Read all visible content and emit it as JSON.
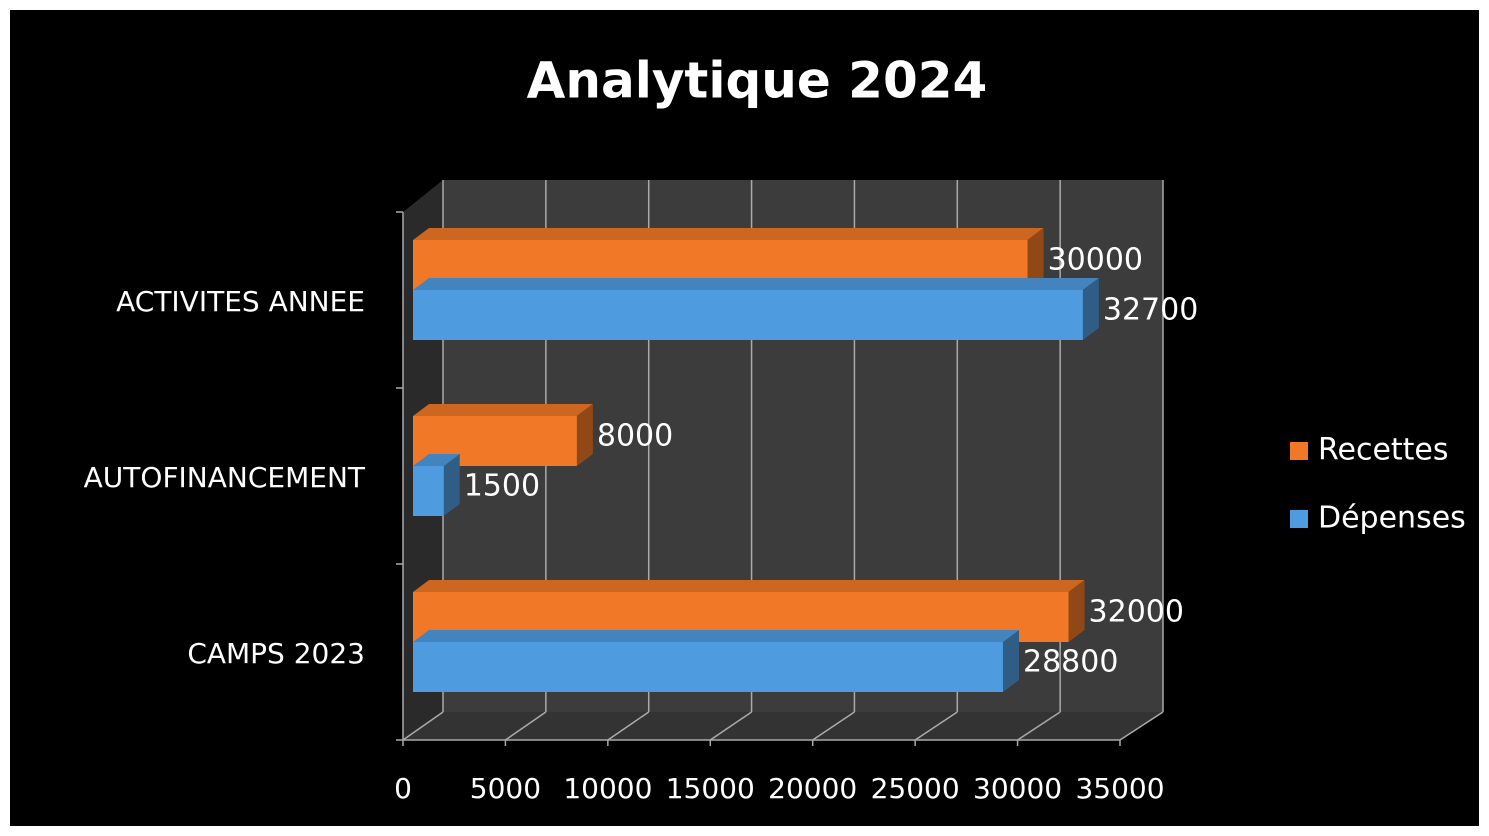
{
  "chart_data": {
    "type": "bar",
    "orientation": "horizontal",
    "title": "Analytique 2024",
    "categories": [
      "ACTIVITES ANNEE",
      "AUTOFINANCEMENT",
      "CAMPS 2023"
    ],
    "series": [
      {
        "name": "Recettes",
        "color": "#f07826",
        "values": [
          30000,
          8000,
          32000
        ]
      },
      {
        "name": "Dépenses",
        "color": "#4f9be0",
        "values": [
          32700,
          1500,
          28800
        ]
      }
    ],
    "xlim": [
      0,
      35000
    ],
    "xticks": [
      0,
      5000,
      10000,
      15000,
      20000,
      25000,
      30000,
      35000
    ],
    "grid": true,
    "legend": "right"
  }
}
